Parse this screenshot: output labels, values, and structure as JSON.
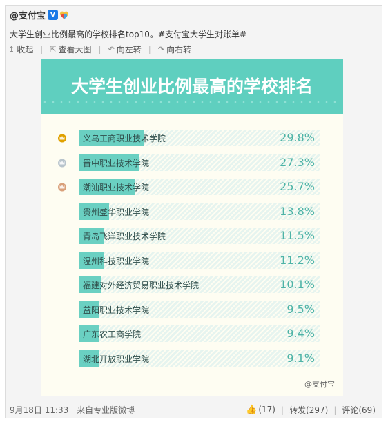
{
  "post": {
    "author": "@支付宝",
    "verified_badge": "V",
    "text": "大学生创业比例最高的学校排名top10。",
    "hashtag": "#支付宝大学生对账单#"
  },
  "toolbar": {
    "collapse": "收起",
    "view_large": "查看大图",
    "rotate_left": "向左转",
    "rotate_right": "向右转"
  },
  "infographic": {
    "title": "大学生创业比例最高的学校排名",
    "watermark": "@支付宝",
    "accent_color": "#6ad0c2",
    "medal_colors": [
      "#e0a100",
      "#b8c4cc",
      "#d9a07a"
    ],
    "items": [
      {
        "rank": 1,
        "name": "义乌工商职业技术学院",
        "value": 29.8,
        "label": "29.8%"
      },
      {
        "rank": 2,
        "name": "晋中职业技术学院",
        "value": 27.3,
        "label": "27.3%"
      },
      {
        "rank": 3,
        "name": "潮汕职业技术学院",
        "value": 25.7,
        "label": "25.7%"
      },
      {
        "rank": 4,
        "name": "贵州盛华职业学院",
        "value": 13.8,
        "label": "13.8%"
      },
      {
        "rank": 5,
        "name": "青岛飞洋职业技术学院",
        "value": 11.5,
        "label": "11.5%"
      },
      {
        "rank": 6,
        "name": "温州科技职业学院",
        "value": 11.2,
        "label": "11.2%"
      },
      {
        "rank": 7,
        "name": "福建对外经济贸易职业技术学院",
        "value": 10.1,
        "label": "10.1%"
      },
      {
        "rank": 8,
        "name": "益阳职业技术学院",
        "value": 9.5,
        "label": "9.5%"
      },
      {
        "rank": 9,
        "name": "广东农工商学院",
        "value": 9.4,
        "label": "9.4%"
      },
      {
        "rank": 10,
        "name": "湖北开放职业学院",
        "value": 9.1,
        "label": "9.1%"
      }
    ]
  },
  "footer": {
    "timestamp": "9月18日 11:33",
    "source": "来自专业版微博",
    "likes": "(17)",
    "repost": "转发(297)",
    "comment": "评论(69)"
  }
}
